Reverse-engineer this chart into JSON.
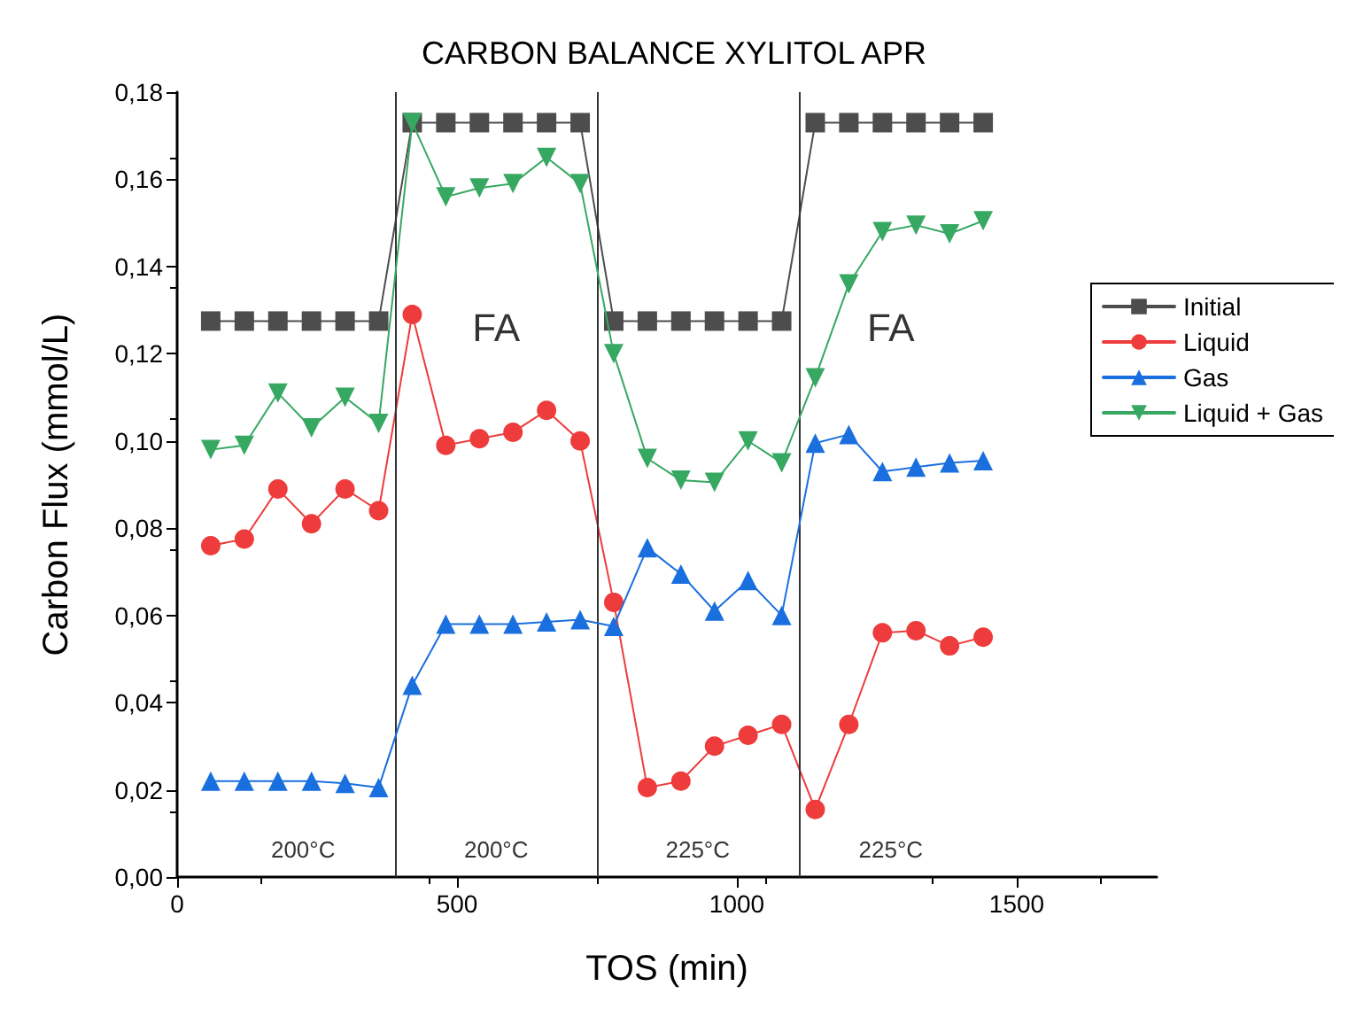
{
  "chart_data": {
    "type": "line",
    "title": "CARBON BALANCE XYLITOL APR",
    "xlabel": "TOS (min)",
    "ylabel": "Carbon Flux (mmol/L)",
    "x": [
      60,
      120,
      180,
      240,
      300,
      360,
      420,
      480,
      540,
      600,
      660,
      720,
      780,
      840,
      900,
      960,
      1020,
      1080,
      1140,
      1200,
      1260,
      1320,
      1380,
      1440
    ],
    "series": [
      {
        "name": "Initial",
        "color": "#4d4d4d",
        "marker": "square",
        "values": [
          0.1275,
          0.1275,
          0.1275,
          0.1275,
          0.1275,
          0.1275,
          0.173,
          0.173,
          0.173,
          0.173,
          0.173,
          0.173,
          0.1275,
          0.1275,
          0.1275,
          0.1275,
          0.1275,
          0.1275,
          0.173,
          0.173,
          0.173,
          0.173,
          0.173,
          0.173
        ]
      },
      {
        "name": "Liquid",
        "color": "#ee3b3b",
        "marker": "circle",
        "values": [
          0.076,
          0.0775,
          0.089,
          0.081,
          0.089,
          0.084,
          0.129,
          0.099,
          0.1005,
          0.102,
          0.107,
          0.1,
          0.063,
          0.0205,
          0.022,
          0.03,
          0.0325,
          0.035,
          0.0155,
          0.035,
          0.056,
          0.0565,
          0.053,
          0.055
        ]
      },
      {
        "name": "Gas",
        "color": "#1a6fdf",
        "marker": "triangle",
        "values": [
          0.022,
          0.022,
          0.022,
          0.022,
          0.0215,
          0.0205,
          0.044,
          0.058,
          0.058,
          0.058,
          0.0585,
          0.059,
          0.0575,
          0.0755,
          0.0695,
          0.061,
          0.068,
          0.06,
          0.0995,
          0.1015,
          0.093,
          0.094,
          0.095,
          0.0955
        ]
      },
      {
        "name": "Liquid + Gas",
        "color": "#37a862",
        "marker": "triangle-down",
        "values": [
          0.098,
          0.099,
          0.111,
          0.103,
          0.11,
          0.104,
          0.173,
          0.156,
          0.158,
          0.159,
          0.165,
          0.159,
          0.12,
          0.096,
          0.091,
          0.0905,
          0.1,
          0.095,
          0.1145,
          0.136,
          0.148,
          0.1495,
          0.1475,
          0.1505
        ]
      }
    ],
    "xlim": [
      0,
      1750
    ],
    "xticks": [
      0,
      500,
      1000,
      1500
    ],
    "ylim": [
      0,
      0.18
    ],
    "yticks": [
      {
        "value": 0,
        "label": "0,00"
      },
      {
        "value": 0.02,
        "label": "0,02"
      },
      {
        "value": 0.04,
        "label": "0,04"
      },
      {
        "value": 0.06,
        "label": "0,06"
      },
      {
        "value": 0.08,
        "label": "0,08"
      },
      {
        "value": 0.1,
        "label": "0,10"
      },
      {
        "value": 0.12,
        "label": "0,12"
      },
      {
        "value": 0.14,
        "label": "0,14"
      },
      {
        "value": 0.16,
        "label": "0,16"
      },
      {
        "value": 0.18,
        "label": "0,18"
      }
    ],
    "ref_lines": [
      {
        "axis": "x",
        "value": 390,
        "color": "#333333"
      },
      {
        "axis": "x",
        "value": 750,
        "color": "#333333"
      },
      {
        "axis": "x",
        "value": 1110,
        "color": "#333333"
      }
    ],
    "annotations": [
      "FA",
      "FA",
      "200°C",
      "200°C",
      "225°C",
      "225°C"
    ],
    "legend": "right",
    "grid": false,
    "line_style": "solid"
  }
}
